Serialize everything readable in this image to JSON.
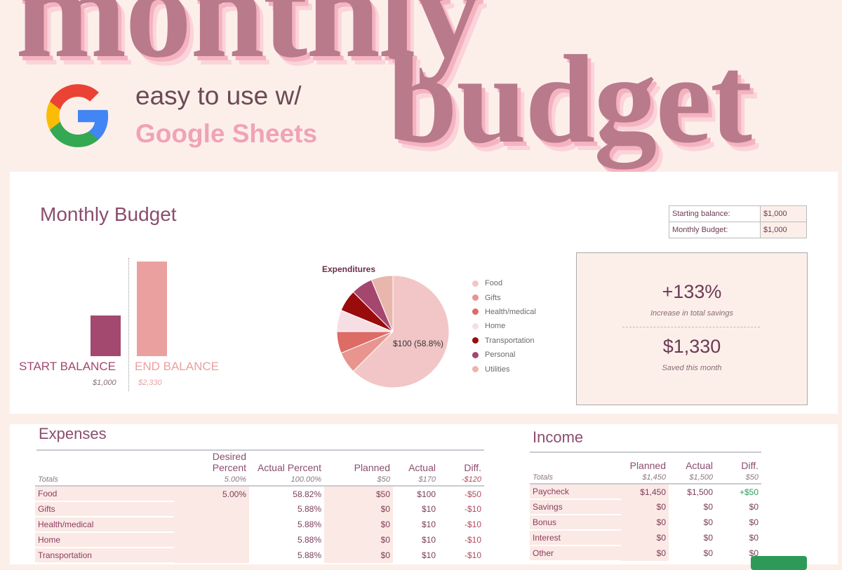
{
  "hero": {
    "title_line1": "monthly",
    "title_line2": "budget",
    "tagline1": "easy to use w/",
    "tagline2": "Google Sheets",
    "logo": "google-g-logo"
  },
  "sheet": {
    "title": "Monthly Budget",
    "balances": [
      {
        "label": "Starting balance:",
        "value": "$1,000"
      },
      {
        "label": "Monthly Budget:",
        "value": "$1,000"
      }
    ],
    "bars": {
      "start_label": "START BALANCE",
      "start_value_text": "$1,000",
      "start_value": 1000,
      "end_label": "END BALANCE",
      "end_value_text": "$2,330",
      "end_value": 2330,
      "colors": {
        "start": "#a3486f",
        "end": "#eba0a0"
      }
    },
    "summary": {
      "percent": "+133%",
      "percent_caption": "Increase in total savings",
      "saved": "$1,330",
      "saved_caption": "Saved this month"
    }
  },
  "chart_data": {
    "type": "pie",
    "title": "Expenditures",
    "slice_label": "$100 (58.8%)",
    "categories": [
      "Food",
      "Gifts",
      "Health/medical",
      "Home",
      "Transportation",
      "Personal",
      "Utilities"
    ],
    "values": [
      100,
      10,
      10,
      10,
      10,
      10,
      10
    ],
    "colors": [
      "#f2c6c6",
      "#e8958f",
      "#dd6b66",
      "#f6dfe4",
      "#9a0b0b",
      "#a5466f",
      "#e8b6aa"
    ],
    "legend": "right"
  },
  "expenses": {
    "title": "Expenses",
    "columns": [
      "Desired Percent",
      "Actual Percent",
      "Planned",
      "Actual",
      "Diff."
    ],
    "totals": {
      "label": "Totals",
      "desired": "5.00%",
      "actual_pct": "100.00%",
      "planned": "$50",
      "actual": "$170",
      "diff": "-$120"
    },
    "rows": [
      {
        "name": "Food",
        "desired": "5.00%",
        "actual_pct": "58.82%",
        "planned": "$50",
        "actual": "$100",
        "diff": "-$50"
      },
      {
        "name": "Gifts",
        "desired": "",
        "actual_pct": "5.88%",
        "planned": "$0",
        "actual": "$10",
        "diff": "-$10"
      },
      {
        "name": "Health/medical",
        "desired": "",
        "actual_pct": "5.88%",
        "planned": "$0",
        "actual": "$10",
        "diff": "-$10"
      },
      {
        "name": "Home",
        "desired": "",
        "actual_pct": "5.88%",
        "planned": "$0",
        "actual": "$10",
        "diff": "-$10"
      },
      {
        "name": "Transportation",
        "desired": "",
        "actual_pct": "5.88%",
        "planned": "$0",
        "actual": "$10",
        "diff": "-$10"
      }
    ]
  },
  "income": {
    "title": "Income",
    "columns": [
      "Planned",
      "Actual",
      "Diff."
    ],
    "totals": {
      "label": "Totals",
      "planned": "$1,450",
      "actual": "$1,500",
      "diff": "$50"
    },
    "rows": [
      {
        "name": "Paycheck",
        "planned": "$1,450",
        "actual": "$1,500",
        "diff": "+$50"
      },
      {
        "name": "Savings",
        "planned": "$0",
        "actual": "$0",
        "diff": "$0"
      },
      {
        "name": "Bonus",
        "planned": "$0",
        "actual": "$0",
        "diff": "$0"
      },
      {
        "name": "Interest",
        "planned": "$0",
        "actual": "$0",
        "diff": "$0"
      },
      {
        "name": "Other",
        "planned": "$0",
        "actual": "$0",
        "diff": "$0"
      }
    ]
  }
}
